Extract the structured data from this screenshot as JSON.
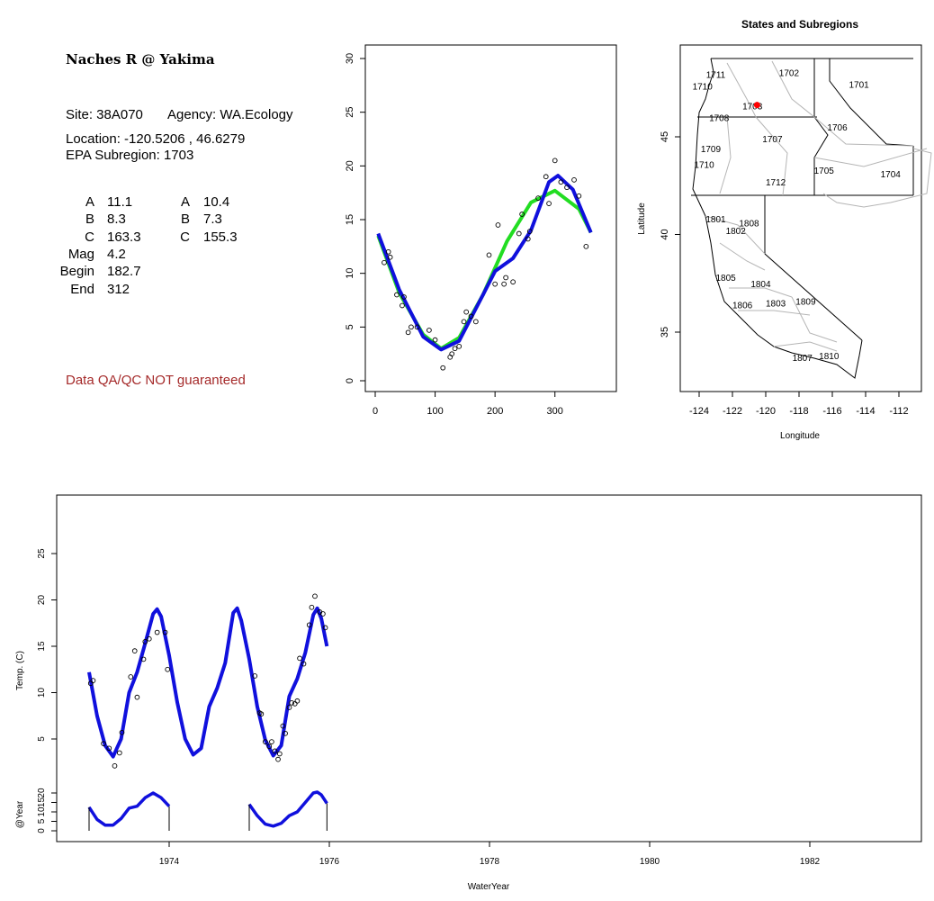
{
  "site": {
    "name": "Naches R @ Yakima",
    "site_line": "Site: 38A070",
    "agency_line": "Agency: WA.Ecology",
    "location_line": "Location: -120.5206 , 46.6279",
    "subregion_line": "EPA Subregion: 1703",
    "qa_notice": "Data QA/QC NOT guaranteed"
  },
  "params": {
    "left": [
      {
        "label": "A",
        "value": "11.1"
      },
      {
        "label": "B",
        "value": "8.3"
      },
      {
        "label": "C",
        "value": "163.3"
      },
      {
        "label": "Mag",
        "value": "4.2"
      },
      {
        "label": "Begin",
        "value": "182.7"
      },
      {
        "label": "End",
        "value": "312"
      }
    ],
    "right": [
      {
        "label": "A",
        "value": "10.4"
      },
      {
        "label": "B",
        "value": "7.3"
      },
      {
        "label": "C",
        "value": "155.3"
      }
    ]
  },
  "colors": {
    "green_fit": "#22dd22",
    "blue_fit": "#1010dd",
    "site_marker": "#ff0000",
    "qa_text": "#a52a2a"
  },
  "chart_data": [
    {
      "type": "scatter",
      "title": "",
      "xlabel": "",
      "ylabel": "",
      "xlim": [
        0,
        365
      ],
      "ylim": [
        0,
        30
      ],
      "x_ticks": [
        "0",
        "100",
        "200",
        "300"
      ],
      "y_ticks": [
        "0",
        "5",
        "10",
        "15",
        "20",
        "25",
        "30"
      ],
      "points": [
        [
          15,
          11
        ],
        [
          22,
          12
        ],
        [
          25,
          11.5
        ],
        [
          36,
          8
        ],
        [
          45,
          7
        ],
        [
          48,
          7.8
        ],
        [
          55,
          4.5
        ],
        [
          60,
          5
        ],
        [
          70,
          5
        ],
        [
          90,
          4.7
        ],
        [
          100,
          3.8
        ],
        [
          113,
          1.2
        ],
        [
          125,
          2.2
        ],
        [
          128,
          2.5
        ],
        [
          133,
          3
        ],
        [
          140,
          3.2
        ],
        [
          148,
          5.5
        ],
        [
          152,
          6.4
        ],
        [
          160,
          6
        ],
        [
          168,
          5.5
        ],
        [
          190,
          11.7
        ],
        [
          200,
          9
        ],
        [
          205,
          14.5
        ],
        [
          215,
          9
        ],
        [
          218,
          9.6
        ],
        [
          230,
          9.2
        ],
        [
          240,
          13.7
        ],
        [
          245,
          15.5
        ],
        [
          255,
          13.2
        ],
        [
          258,
          13.9
        ],
        [
          272,
          17
        ],
        [
          285,
          19
        ],
        [
          290,
          16.5
        ],
        [
          300,
          20.5
        ],
        [
          310,
          18.5
        ],
        [
          320,
          18
        ],
        [
          332,
          18.7
        ],
        [
          340,
          17.2
        ],
        [
          352,
          12.5
        ]
      ],
      "series": [
        {
          "curve": [
            [
              5,
              13.5
            ],
            [
              40,
              8.2
            ],
            [
              80,
              4.3
            ],
            [
              110,
              3
            ],
            [
              140,
              4
            ],
            [
              180,
              8
            ],
            [
              220,
              13
            ],
            [
              260,
              16.6
            ],
            [
              300,
              17.7
            ],
            [
              340,
              16
            ],
            [
              360,
              13.8
            ]
          ]
        },
        {
          "curve": [
            [
              5,
              13.7
            ],
            [
              40,
              8.5
            ],
            [
              80,
              4.1
            ],
            [
              110,
              2.9
            ],
            [
              140,
              3.7
            ],
            [
              180,
              8
            ],
            [
              200,
              10.2
            ],
            [
              230,
              11.4
            ],
            [
              260,
              14
            ],
            [
              290,
              18.5
            ],
            [
              305,
              19.1
            ],
            [
              330,
              17.8
            ],
            [
              360,
              13.8
            ]
          ]
        }
      ]
    },
    {
      "type": "map",
      "title": "States and Subregions",
      "xlabel": "Longitude",
      "ylabel": "Latitude",
      "xlim": [
        -125.5,
        -110.8
      ],
      "ylim": [
        32.2,
        49.5
      ],
      "x_ticks": [
        "-124",
        "-122",
        "-120",
        "-118",
        "-116",
        "-114",
        "-112"
      ],
      "y_ticks": [
        "35",
        "40",
        "45"
      ],
      "site": {
        "lon": -120.5206,
        "lat": 46.6279
      },
      "region_labels": [
        {
          "text": "1702",
          "lon": -118.6,
          "lat": 48.3
        },
        {
          "text": "1701",
          "lon": -114.4,
          "lat": 47.7
        },
        {
          "text": "1711",
          "lon": -123.0,
          "lat": 48.2
        },
        {
          "text": "1710",
          "lon": -123.8,
          "lat": 47.6
        },
        {
          "text": "1703",
          "lon": -120.8,
          "lat": 46.6
        },
        {
          "text": "1708",
          "lon": -122.8,
          "lat": 46.0
        },
        {
          "text": "1706",
          "lon": -115.7,
          "lat": 45.5
        },
        {
          "text": "1707",
          "lon": -119.6,
          "lat": 44.9
        },
        {
          "text": "1709",
          "lon": -123.3,
          "lat": 44.4
        },
        {
          "text": "1710",
          "lon": -123.7,
          "lat": 43.6
        },
        {
          "text": "1705",
          "lon": -116.5,
          "lat": 43.3
        },
        {
          "text": "1704",
          "lon": -112.5,
          "lat": 43.1
        },
        {
          "text": "1712",
          "lon": -119.4,
          "lat": 42.7
        },
        {
          "text": "1801",
          "lon": -123.0,
          "lat": 40.8
        },
        {
          "text": "1808",
          "lon": -121.0,
          "lat": 40.6
        },
        {
          "text": "1802",
          "lon": -121.8,
          "lat": 40.2
        },
        {
          "text": "1805",
          "lon": -122.4,
          "lat": 37.8
        },
        {
          "text": "1804",
          "lon": -120.3,
          "lat": 37.5
        },
        {
          "text": "1806",
          "lon": -121.4,
          "lat": 36.4
        },
        {
          "text": "1803",
          "lon": -119.4,
          "lat": 36.5
        },
        {
          "text": "1809",
          "lon": -117.6,
          "lat": 36.6
        },
        {
          "text": "1810",
          "lon": -116.2,
          "lat": 33.8
        },
        {
          "text": "1807",
          "lon": -117.8,
          "lat": 33.7
        }
      ]
    },
    {
      "type": "line",
      "title": "",
      "xlabel": "WaterYear",
      "ylabel": "Temp. (C)",
      "ylabel_inset": "@Year",
      "xlim": [
        1972.8,
        1983.4
      ],
      "ylim": [
        -10.9,
        30
      ],
      "x_ticks": [
        "1974",
        "1976",
        "1978",
        "1980",
        "1982"
      ],
      "y_ticks": [
        "5",
        "10",
        "15",
        "20",
        "25"
      ],
      "y_ticks_inset": [
        "0",
        "5",
        "10",
        "15",
        "20"
      ],
      "points": [
        [
          1973.02,
          11
        ],
        [
          1973.05,
          11.3
        ],
        [
          1973.18,
          4.5
        ],
        [
          1973.25,
          4
        ],
        [
          1973.32,
          2.1
        ],
        [
          1973.38,
          3.5
        ],
        [
          1973.41,
          5.7
        ],
        [
          1973.52,
          11.7
        ],
        [
          1973.57,
          14.5
        ],
        [
          1973.6,
          9.5
        ],
        [
          1973.68,
          13.6
        ],
        [
          1973.7,
          15.5
        ],
        [
          1973.75,
          15.8
        ],
        [
          1973.85,
          16.5
        ],
        [
          1973.95,
          16.5
        ],
        [
          1973.98,
          12.5
        ],
        [
          1975.07,
          11.8
        ],
        [
          1975.13,
          7.8
        ],
        [
          1975.15,
          7.7
        ],
        [
          1975.2,
          4.7
        ],
        [
          1975.25,
          4.2
        ],
        [
          1975.28,
          4.7
        ],
        [
          1975.32,
          3.7
        ],
        [
          1975.36,
          2.8
        ],
        [
          1975.38,
          3.4
        ],
        [
          1975.42,
          6.4
        ],
        [
          1975.45,
          5.6
        ],
        [
          1975.5,
          8.4
        ],
        [
          1975.53,
          8.9
        ],
        [
          1975.57,
          8.8
        ],
        [
          1975.6,
          9.1
        ],
        [
          1975.63,
          13.7
        ],
        [
          1975.68,
          13.1
        ],
        [
          1975.75,
          17.3
        ],
        [
          1975.78,
          19.2
        ],
        [
          1975.82,
          20.4
        ],
        [
          1975.88,
          18.7
        ],
        [
          1975.92,
          18.5
        ],
        [
          1975.95,
          17
        ]
      ],
      "series": [
        {
          "curve": [
            [
              1973.0,
              12.2
            ],
            [
              1973.1,
              7.5
            ],
            [
              1973.2,
              4.3
            ],
            [
              1973.3,
              3.1
            ],
            [
              1973.4,
              5
            ],
            [
              1973.5,
              10
            ],
            [
              1973.6,
              12.2
            ],
            [
              1973.7,
              15.3
            ],
            [
              1973.8,
              18.5
            ],
            [
              1973.85,
              19
            ],
            [
              1973.9,
              18.2
            ],
            [
              1974.0,
              14
            ],
            [
              1974.1,
              9
            ],
            [
              1974.2,
              5
            ],
            [
              1974.3,
              3.3
            ],
            [
              1974.4,
              4
            ],
            [
              1974.5,
              8.5
            ],
            [
              1974.6,
              10.5
            ],
            [
              1974.7,
              13.2
            ],
            [
              1974.8,
              18.6
            ],
            [
              1974.85,
              19.1
            ],
            [
              1974.9,
              17.8
            ],
            [
              1975.0,
              13.6
            ],
            [
              1975.1,
              8.5
            ],
            [
              1975.2,
              4.9
            ],
            [
              1975.3,
              3.2
            ],
            [
              1975.4,
              4.3
            ],
            [
              1975.5,
              9.6
            ],
            [
              1975.6,
              11.5
            ],
            [
              1975.7,
              14.3
            ],
            [
              1975.8,
              18.4
            ],
            [
              1975.85,
              19.1
            ],
            [
              1975.9,
              18
            ],
            [
              1975.97,
              15
            ]
          ]
        },
        {
          "curve": [
            [
              1973.0,
              12.5
            ],
            [
              1973.1,
              6
            ],
            [
              1973.2,
              3
            ],
            [
              1973.3,
              3
            ],
            [
              1973.4,
              6.5
            ],
            [
              1973.5,
              12
            ],
            [
              1973.6,
              13
            ],
            [
              1973.7,
              17.5
            ],
            [
              1973.8,
              20
            ],
            [
              1973.9,
              17.5
            ],
            [
              1974.0,
              13
            ]
          ]
        },
        {
          "curve": [
            [
              1975.0,
              14
            ],
            [
              1975.1,
              8
            ],
            [
              1975.2,
              3.5
            ],
            [
              1975.3,
              2.5
            ],
            [
              1975.4,
              4
            ],
            [
              1975.5,
              8
            ],
            [
              1975.6,
              10
            ],
            [
              1975.7,
              15
            ],
            [
              1975.8,
              20
            ],
            [
              1975.85,
              20.5
            ],
            [
              1975.9,
              19
            ],
            [
              1975.97,
              14.5
            ]
          ]
        }
      ]
    }
  ]
}
